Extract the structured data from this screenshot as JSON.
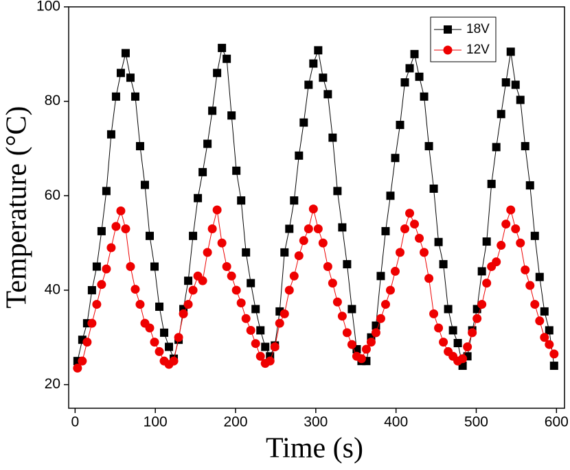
{
  "chart_data": {
    "type": "line",
    "x_label": "Time (s)",
    "y_label": "Temperature (°C)",
    "xlim": [
      -8,
      610
    ],
    "ylim": [
      15,
      100
    ],
    "xticks": [
      0,
      100,
      200,
      300,
      400,
      500,
      600
    ],
    "yticks": [
      20,
      40,
      60,
      80,
      100
    ],
    "legend": "top-right",
    "x": [
      3,
      9,
      15,
      21,
      27,
      33,
      39,
      45,
      51,
      57,
      63,
      69,
      75,
      81,
      87,
      93,
      99,
      105,
      111,
      117,
      123,
      129,
      135,
      141,
      147,
      153,
      159,
      165,
      171,
      177,
      183,
      189,
      195,
      201,
      207,
      213,
      219,
      225,
      231,
      237,
      243,
      249,
      255,
      261,
      267,
      273,
      279,
      285,
      291,
      297,
      303,
      309,
      315,
      321,
      327,
      333,
      339,
      345,
      351,
      357,
      363,
      369,
      375,
      381,
      387,
      393,
      399,
      405,
      411,
      417,
      423,
      429,
      435,
      441,
      447,
      453,
      459,
      465,
      471,
      477,
      483,
      489,
      495,
      501,
      507,
      513,
      519,
      525,
      531,
      537,
      543,
      549,
      555,
      561,
      567,
      573,
      579,
      585,
      591,
      597
    ],
    "series": [
      {
        "name": "18V",
        "color": "#000000",
        "marker": "square",
        "values": [
          25,
          29.5,
          33,
          40,
          45,
          52.5,
          61,
          73,
          81,
          86,
          90.2,
          85,
          81,
          70.5,
          62.3,
          51.5,
          45,
          36.5,
          31,
          28,
          25.5,
          29.5,
          36,
          42,
          51.5,
          59.5,
          65,
          71,
          78,
          86,
          91.3,
          89,
          77,
          65.3,
          59,
          48,
          41.5,
          36,
          31.5,
          28,
          26,
          28.3,
          35.5,
          48,
          53,
          59,
          68.5,
          75.5,
          83.5,
          88,
          90.8,
          85,
          81.5,
          72.3,
          61,
          53.3,
          45.5,
          36,
          27.5,
          25,
          25,
          30,
          32.5,
          43,
          52.5,
          60,
          68,
          75,
          84,
          87,
          90,
          85.2,
          81,
          70.5,
          61.5,
          50.2,
          45.5,
          36,
          31.5,
          28.8,
          24,
          26,
          31.5,
          36,
          44,
          50.3,
          62.5,
          70.3,
          77.3,
          84,
          90.5,
          83.5,
          80.3,
          70.5,
          62.2,
          51.5,
          42.8,
          35.5,
          31.5,
          24
        ]
      },
      {
        "name": "12V",
        "color": "#ee0000",
        "marker": "circle",
        "values": [
          23.5,
          25,
          29,
          33,
          37,
          41.2,
          44.5,
          49,
          53.5,
          56.8,
          53,
          45,
          40.2,
          37,
          33,
          32,
          29,
          27,
          25,
          24.3,
          25,
          30,
          35,
          37,
          40,
          43,
          42,
          48,
          53,
          57,
          50,
          45,
          43,
          40,
          37.3,
          34,
          31.5,
          28.7,
          26,
          24.5,
          25,
          28,
          33,
          35,
          40,
          43,
          47.3,
          50.5,
          53,
          57.2,
          53,
          50,
          45,
          41.5,
          37.5,
          34.5,
          31,
          28.5,
          26,
          25.5,
          27.5,
          29,
          31,
          34,
          37,
          40,
          44,
          48,
          53,
          56.3,
          54,
          51,
          48,
          42.5,
          35,
          32,
          29,
          27,
          26,
          25,
          25.5,
          28,
          31,
          34,
          37,
          41.5,
          45,
          46,
          49.5,
          54,
          57,
          53,
          50,
          44.3,
          41,
          37,
          33.5,
          30,
          28.5,
          26.5
        ]
      }
    ]
  }
}
